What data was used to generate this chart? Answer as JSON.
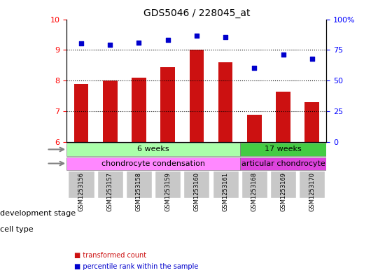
{
  "title": "GDS5046 / 228045_at",
  "samples": [
    "GSM1253156",
    "GSM1253157",
    "GSM1253158",
    "GSM1253159",
    "GSM1253160",
    "GSM1253161",
    "GSM1253168",
    "GSM1253169",
    "GSM1253170"
  ],
  "bar_values": [
    7.9,
    8.0,
    8.1,
    8.45,
    9.0,
    8.6,
    6.9,
    7.65,
    7.3
  ],
  "scatter_values": [
    9.22,
    9.18,
    9.23,
    9.33,
    9.47,
    9.43,
    8.42,
    8.85,
    8.72
  ],
  "ylim_left": [
    6,
    10
  ],
  "ylim_right": [
    0,
    100
  ],
  "yticks_left": [
    6,
    7,
    8,
    9,
    10
  ],
  "yticks_right": [
    0,
    25,
    50,
    75,
    100
  ],
  "ytick_labels_right": [
    "0",
    "25",
    "50",
    "75",
    "100%"
  ],
  "bar_color": "#cc1111",
  "scatter_color": "#0000cc",
  "bar_width": 0.5,
  "grid_color": "black",
  "grid_linestyle": "dotted",
  "stage_6weeks_samples": 6,
  "stage_17weeks_samples": 3,
  "stage_6weeks_label": "6 weeks",
  "stage_17weeks_label": "17 weeks",
  "cell_condensation_label": "chondrocyte condensation",
  "cell_articular_label": "articular chondrocyte",
  "dev_stage_label": "development stage",
  "cell_type_label": "cell type",
  "color_6weeks": "#aaffaa",
  "color_17weeks": "#44cc44",
  "color_condensation": "#ff88ff",
  "color_articular": "#dd44dd",
  "legend_bar_label": "transformed count",
  "legend_scatter_label": "percentile rank within the sample",
  "background_color": "#ffffff",
  "tick_area_color": "#cccccc"
}
